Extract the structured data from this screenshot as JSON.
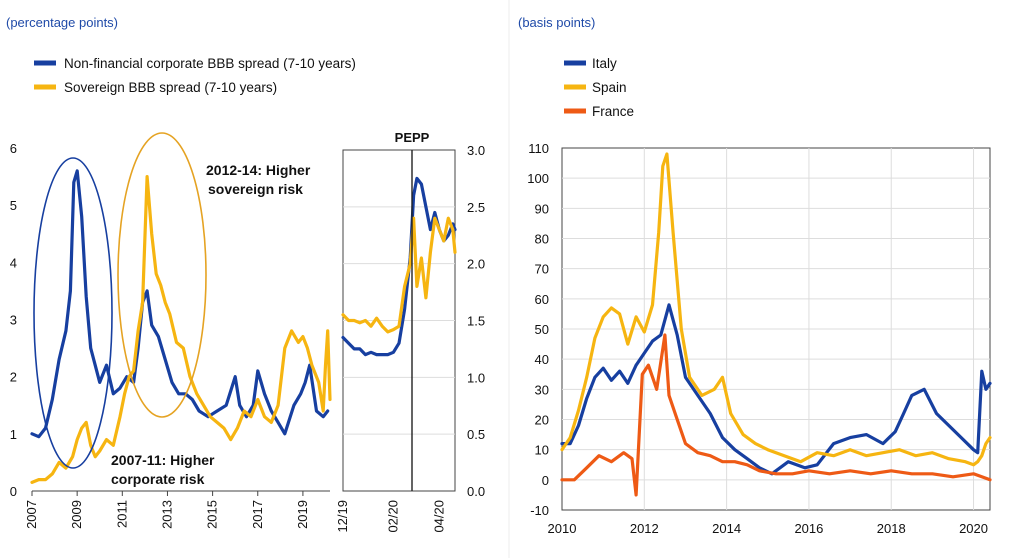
{
  "colors": {
    "blue": "#173fa0",
    "yellow": "#f6b511",
    "orange": "#ee5a15",
    "ink": "#111111"
  },
  "chart_data": [
    {
      "panel": "left-long-run",
      "type": "line",
      "unit_label": "(percentage points)",
      "legend_placement": "top-left",
      "ylim": [
        0,
        6
      ],
      "xlim": [
        2007,
        2020.2
      ],
      "y_ticks": [
        "0",
        "1",
        "2",
        "3",
        "4",
        "5",
        "6"
      ],
      "x_ticks": [
        "2007",
        "2009",
        "2011",
        "2013",
        "2015",
        "2017",
        "2019"
      ],
      "annotations": [
        {
          "lines": [
            "2012-14: Higher",
            "sovereign risk"
          ]
        },
        {
          "lines": [
            "2007-11: Higher",
            "corporate risk"
          ]
        }
      ],
      "series": [
        {
          "name": "Non-financial corporate BBB spread (7-10 years)",
          "color": "#173fa0",
          "x": [
            2007.0,
            2007.3,
            2007.6,
            2007.9,
            2008.2,
            2008.5,
            2008.7,
            2008.85,
            2009.0,
            2009.2,
            2009.4,
            2009.6,
            2009.8,
            2010.0,
            2010.3,
            2010.6,
            2010.9,
            2011.2,
            2011.5,
            2011.7,
            2011.9,
            2012.1,
            2012.3,
            2012.6,
            2012.9,
            2013.2,
            2013.5,
            2013.8,
            2014.1,
            2014.4,
            2014.8,
            2015.2,
            2015.6,
            2016.0,
            2016.2,
            2016.5,
            2016.8,
            2017.0,
            2017.3,
            2017.6,
            2017.9,
            2018.2,
            2018.6,
            2018.9,
            2019.1,
            2019.3,
            2019.6,
            2019.9,
            2020.1
          ],
          "y": [
            1.0,
            0.95,
            1.1,
            1.6,
            2.3,
            2.8,
            3.5,
            5.4,
            5.6,
            4.8,
            3.4,
            2.5,
            2.2,
            1.9,
            2.2,
            1.7,
            1.8,
            2.0,
            1.9,
            2.5,
            3.3,
            3.5,
            2.9,
            2.7,
            2.3,
            1.9,
            1.7,
            1.7,
            1.6,
            1.4,
            1.3,
            1.4,
            1.5,
            2.0,
            1.5,
            1.3,
            1.5,
            2.1,
            1.7,
            1.4,
            1.2,
            1.0,
            1.5,
            1.7,
            1.9,
            2.2,
            1.4,
            1.3,
            1.4
          ]
        },
        {
          "name": "Sovereign BBB spread (7-10 years)",
          "color": "#f6b511",
          "x": [
            2007.0,
            2007.3,
            2007.6,
            2007.9,
            2008.2,
            2008.5,
            2008.8,
            2009.0,
            2009.2,
            2009.4,
            2009.6,
            2009.8,
            2010.0,
            2010.3,
            2010.6,
            2010.9,
            2011.1,
            2011.3,
            2011.5,
            2011.7,
            2011.9,
            2012.1,
            2012.3,
            2012.5,
            2012.7,
            2012.9,
            2013.1,
            2013.4,
            2013.7,
            2014.0,
            2014.3,
            2014.6,
            2014.9,
            2015.2,
            2015.5,
            2015.8,
            2016.1,
            2016.4,
            2016.7,
            2017.0,
            2017.3,
            2017.6,
            2017.9,
            2018.2,
            2018.5,
            2018.8,
            2019.0,
            2019.2,
            2019.4,
            2019.7,
            2019.9,
            2020.0,
            2020.1,
            2020.2
          ],
          "y": [
            0.15,
            0.2,
            0.2,
            0.3,
            0.5,
            0.4,
            0.6,
            0.9,
            1.1,
            1.2,
            0.8,
            0.6,
            0.7,
            0.9,
            0.8,
            1.3,
            1.7,
            2.0,
            2.1,
            2.8,
            3.3,
            5.5,
            4.5,
            3.8,
            3.6,
            3.3,
            3.1,
            2.6,
            2.5,
            2.0,
            1.7,
            1.5,
            1.3,
            1.2,
            1.1,
            0.9,
            1.1,
            1.4,
            1.3,
            1.6,
            1.3,
            1.2,
            1.5,
            2.5,
            2.8,
            2.6,
            2.7,
            2.5,
            2.2,
            1.9,
            1.4,
            2.2,
            2.8,
            1.6
          ]
        }
      ]
    },
    {
      "panel": "left-zoom",
      "type": "line",
      "ylim": [
        0,
        3
      ],
      "y_ticks": [
        "0.0",
        "0.5",
        "1.0",
        "1.5",
        "2.0",
        "2.5",
        "3.0"
      ],
      "x_ticks": [
        "12/19",
        "02/20",
        "04/20"
      ],
      "marker_label": "PEPP",
      "series": [
        {
          "name": "Non-financial corporate BBB spread (7-10 years)",
          "color": "#173fa0",
          "x": [
            0,
            0.05,
            0.1,
            0.15,
            0.2,
            0.25,
            0.3,
            0.35,
            0.4,
            0.45,
            0.5,
            0.55,
            0.6,
            0.63,
            0.66,
            0.7,
            0.74,
            0.78,
            0.82,
            0.86,
            0.9,
            0.94,
            0.98,
            1.0
          ],
          "y": [
            1.35,
            1.3,
            1.25,
            1.25,
            1.2,
            1.22,
            1.2,
            1.2,
            1.2,
            1.22,
            1.3,
            1.6,
            2.05,
            2.6,
            2.75,
            2.7,
            2.5,
            2.3,
            2.45,
            2.3,
            2.2,
            2.25,
            2.35,
            2.3
          ]
        },
        {
          "name": "Sovereign BBB spread (7-10 years)",
          "color": "#f6b511",
          "x": [
            0,
            0.05,
            0.1,
            0.15,
            0.2,
            0.25,
            0.3,
            0.35,
            0.4,
            0.45,
            0.5,
            0.55,
            0.6,
            0.63,
            0.66,
            0.7,
            0.74,
            0.78,
            0.82,
            0.86,
            0.9,
            0.94,
            0.98,
            1.0
          ],
          "y": [
            1.55,
            1.5,
            1.5,
            1.48,
            1.5,
            1.45,
            1.52,
            1.45,
            1.4,
            1.42,
            1.45,
            1.8,
            2.0,
            2.4,
            1.8,
            2.05,
            1.7,
            2.1,
            2.4,
            2.3,
            2.2,
            2.4,
            2.3,
            2.1
          ]
        }
      ]
    },
    {
      "panel": "right",
      "type": "line",
      "unit_label": "(basis points)",
      "legend_placement": "top-left",
      "ylim": [
        -10,
        110
      ],
      "xlim": [
        2010,
        2020.4
      ],
      "y_ticks": [
        "-10",
        "0",
        "10",
        "20",
        "30",
        "40",
        "50",
        "60",
        "70",
        "80",
        "90",
        "100",
        "110"
      ],
      "x_ticks": [
        "2010",
        "2012",
        "2014",
        "2016",
        "2018",
        "2020"
      ],
      "series": [
        {
          "name": "Italy",
          "color": "#173fa0",
          "x": [
            2010.0,
            2010.2,
            2010.4,
            2010.6,
            2010.8,
            2011.0,
            2011.2,
            2011.4,
            2011.6,
            2011.8,
            2012.0,
            2012.2,
            2012.4,
            2012.6,
            2012.8,
            2013.0,
            2013.3,
            2013.6,
            2013.9,
            2014.2,
            2014.5,
            2014.8,
            2015.1,
            2015.5,
            2015.9,
            2016.2,
            2016.6,
            2017.0,
            2017.4,
            2017.8,
            2018.1,
            2018.3,
            2018.5,
            2018.8,
            2019.1,
            2019.4,
            2019.7,
            2020.0,
            2020.1,
            2020.2,
            2020.3,
            2020.4
          ],
          "y": [
            12,
            12,
            18,
            27,
            34,
            37,
            33,
            36,
            32,
            38,
            42,
            46,
            48,
            58,
            48,
            34,
            28,
            22,
            14,
            10,
            7,
            4,
            2,
            6,
            4,
            5,
            12,
            14,
            15,
            12,
            16,
            22,
            28,
            30,
            22,
            18,
            14,
            10,
            9,
            36,
            30,
            32
          ]
        },
        {
          "name": "Spain",
          "color": "#f6b511",
          "x": [
            2010.0,
            2010.2,
            2010.4,
            2010.6,
            2010.8,
            2011.0,
            2011.2,
            2011.4,
            2011.6,
            2011.8,
            2012.0,
            2012.2,
            2012.35,
            2012.45,
            2012.55,
            2012.7,
            2012.9,
            2013.1,
            2013.4,
            2013.7,
            2013.9,
            2014.1,
            2014.4,
            2014.7,
            2015.0,
            2015.4,
            2015.8,
            2016.2,
            2016.6,
            2017.0,
            2017.4,
            2017.8,
            2018.2,
            2018.6,
            2019.0,
            2019.4,
            2019.8,
            2020.0,
            2020.1,
            2020.2,
            2020.3,
            2020.4
          ],
          "y": [
            10,
            14,
            23,
            34,
            47,
            54,
            57,
            55,
            45,
            54,
            49,
            58,
            82,
            104,
            108,
            82,
            50,
            34,
            28,
            30,
            34,
            22,
            15,
            12,
            10,
            8,
            6,
            9,
            8,
            10,
            8,
            9,
            10,
            8,
            9,
            7,
            6,
            5,
            6,
            8,
            12,
            14
          ]
        },
        {
          "name": "France",
          "color": "#ee5a15",
          "x": [
            2010.0,
            2010.3,
            2010.6,
            2010.9,
            2011.2,
            2011.5,
            2011.7,
            2011.8,
            2011.95,
            2012.1,
            2012.3,
            2012.5,
            2012.6,
            2012.8,
            2013.0,
            2013.3,
            2013.6,
            2013.9,
            2014.2,
            2014.5,
            2014.8,
            2015.2,
            2015.6,
            2016.0,
            2016.5,
            2017.0,
            2017.5,
            2018.0,
            2018.5,
            2019.0,
            2019.5,
            2020.0,
            2020.2,
            2020.4
          ],
          "y": [
            0,
            0,
            4,
            8,
            6,
            9,
            7,
            -5,
            35,
            38,
            30,
            48,
            28,
            20,
            12,
            9,
            8,
            6,
            6,
            5,
            3,
            2,
            2,
            3,
            2,
            3,
            2,
            3,
            2,
            2,
            1,
            2,
            1,
            0
          ]
        }
      ]
    }
  ]
}
